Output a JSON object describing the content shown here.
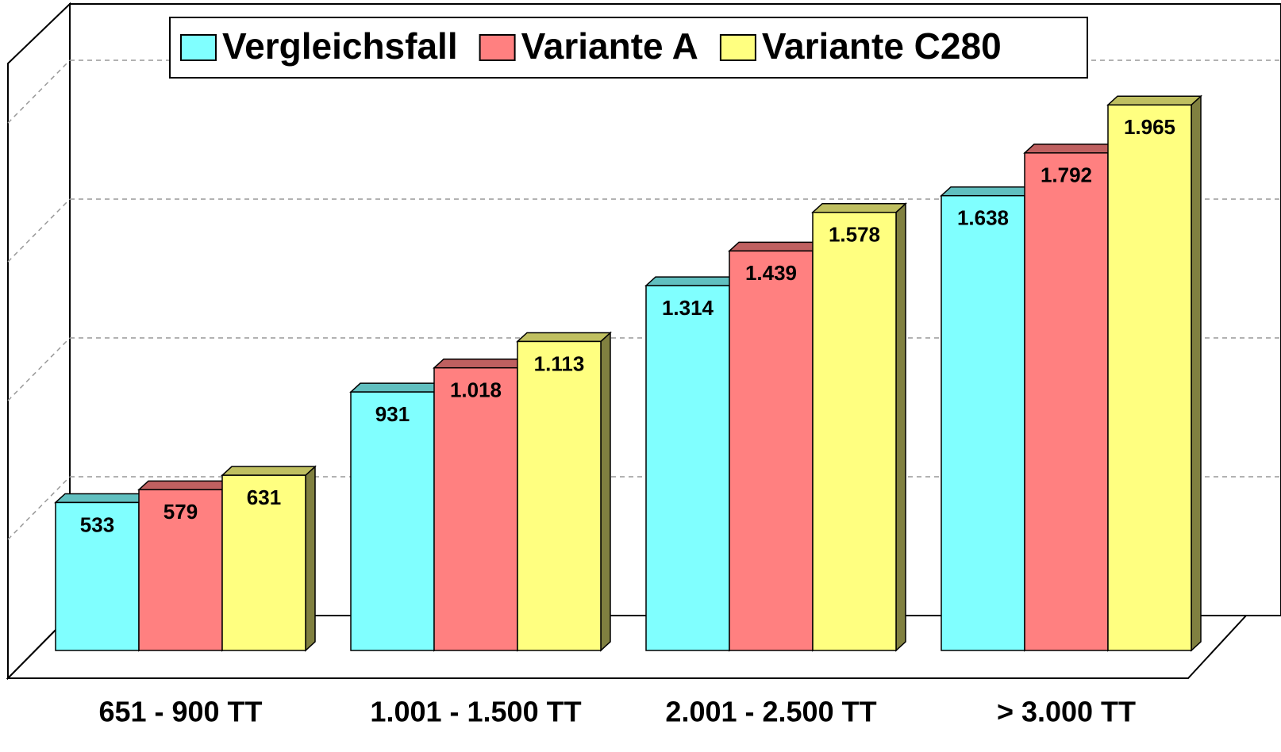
{
  "chart_data": {
    "type": "bar3d",
    "categories": [
      "651 - 900 TT",
      "1.001 - 1.500 TT",
      "2.001 - 2.500 TT",
      "> 3.000 TT"
    ],
    "series": [
      {
        "name": "Vergleichsfall",
        "color": "#80ffff",
        "values": [
          533,
          931,
          1314,
          1638
        ],
        "value_labels": [
          "533",
          "931",
          "1.314",
          "1.638"
        ]
      },
      {
        "name": "Variante A",
        "color": "#ff8080",
        "values": [
          579,
          1018,
          1439,
          1792
        ],
        "value_labels": [
          "579",
          "1.018",
          "1.439",
          "1.792"
        ]
      },
      {
        "name": "Variante C280",
        "color": "#ffff80",
        "values": [
          631,
          1113,
          1578,
          1965
        ],
        "value_labels": [
          "631",
          "1.113",
          "1.578",
          "1.965"
        ]
      }
    ],
    "ylim": [
      0,
      2200
    ],
    "yticks": [
      500,
      1000,
      1500,
      2000
    ],
    "grid": true,
    "legend": "top"
  }
}
